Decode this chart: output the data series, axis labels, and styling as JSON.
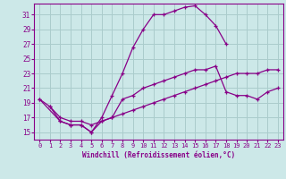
{
  "xlabel": "Windchill (Refroidissement éolien,°C)",
  "bg_color": "#cce8e8",
  "grid_color": "#aacccc",
  "line_color": "#880088",
  "xlim": [
    -0.5,
    23.5
  ],
  "ylim": [
    14,
    32.5
  ],
  "yticks": [
    15,
    17,
    19,
    21,
    23,
    25,
    27,
    29,
    31
  ],
  "xticks": [
    0,
    1,
    2,
    3,
    4,
    5,
    6,
    7,
    8,
    9,
    10,
    11,
    12,
    13,
    14,
    15,
    16,
    17,
    18,
    19,
    20,
    21,
    22,
    23
  ],
  "lines": [
    {
      "x": [
        1,
        2,
        3,
        4,
        5,
        6,
        7,
        8,
        9,
        10,
        11,
        12,
        13,
        14,
        15,
        16,
        17,
        18
      ],
      "y": [
        18.5,
        16.5,
        16,
        16,
        15,
        17,
        20,
        23,
        26.5,
        29,
        31,
        31,
        31.5,
        32,
        32.2,
        31,
        29.5,
        27
      ]
    },
    {
      "x": [
        0,
        2,
        3,
        4,
        5,
        6,
        7,
        8,
        9,
        10,
        11,
        12,
        13,
        14,
        15,
        16,
        17,
        18,
        19,
        20,
        21,
        22,
        23
      ],
      "y": [
        19.5,
        16.5,
        16,
        16,
        15,
        16.5,
        17,
        19.5,
        20,
        21,
        21.5,
        22,
        22.5,
        23,
        23.5,
        23.5,
        24,
        20.5,
        20,
        20,
        19.5,
        20.5,
        21
      ]
    },
    {
      "x": [
        0,
        1,
        2,
        3,
        4,
        5,
        6,
        7,
        8,
        9,
        10,
        11,
        12,
        13,
        14,
        15,
        16,
        17,
        18,
        19,
        20,
        21,
        22,
        23
      ],
      "y": [
        19.5,
        18.5,
        17,
        16.5,
        16.5,
        16,
        16.5,
        17,
        17.5,
        18,
        18.5,
        19,
        19.5,
        20,
        20.5,
        21,
        21.5,
        22,
        22.5,
        23,
        23,
        23,
        23.5,
        23.5
      ]
    }
  ]
}
